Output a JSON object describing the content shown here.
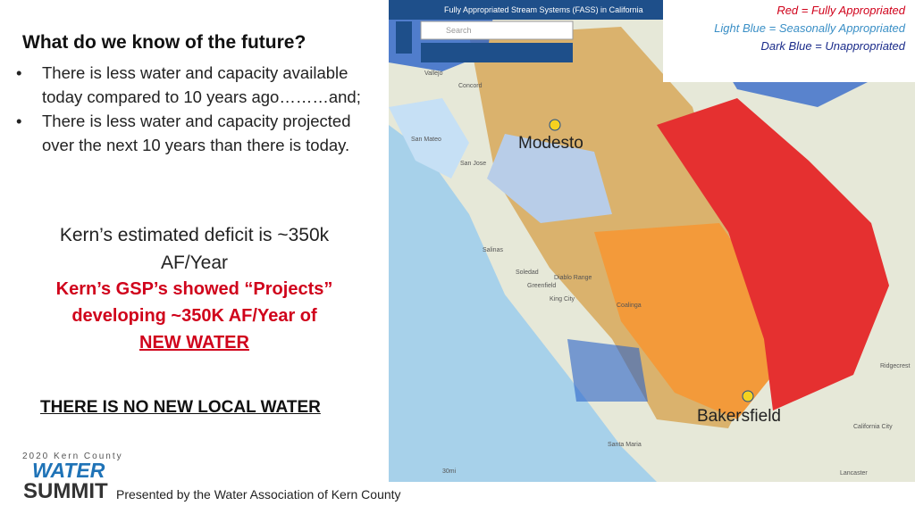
{
  "heading": "What do we know of the future?",
  "bullets": [
    "There is less water and capacity available today compared to 10 years ago………and;",
    "There is less water and capacity projected over the next 10 years than there is today."
  ],
  "deficit": "Kern’s estimated deficit is ~350k AF/Year",
  "projects": {
    "text": "Kern’s GSP’s showed “Projects” developing ~350K AF/Year of",
    "emphasis": "NEW WATER"
  },
  "conclusion": "THERE IS NO NEW LOCAL WATER",
  "logo": {
    "year": "2020 Kern County",
    "water": "WATER",
    "summit": "SUMMIT"
  },
  "presented_by": "Presented by the Water Association of Kern County",
  "map": {
    "title": "Fully Appropriated Stream Systems (FASS) in California",
    "search": "Search",
    "scale": "30mi",
    "legend": [
      "Red = Fully Appropriated",
      "Light Blue = Seasonally Appropriated",
      "Dark Blue = Unappropriated"
    ],
    "cities": [
      "Modesto",
      "Bakersfield"
    ],
    "places": [
      "Vallejo",
      "Concord",
      "San Mateo",
      "San Jose",
      "Salinas",
      "Soledad",
      "Greenfield",
      "King City",
      "Diablo Range",
      "Coalinga",
      "Santa Maria",
      "Lancaster",
      "California City",
      "Ridgecrest"
    ]
  }
}
